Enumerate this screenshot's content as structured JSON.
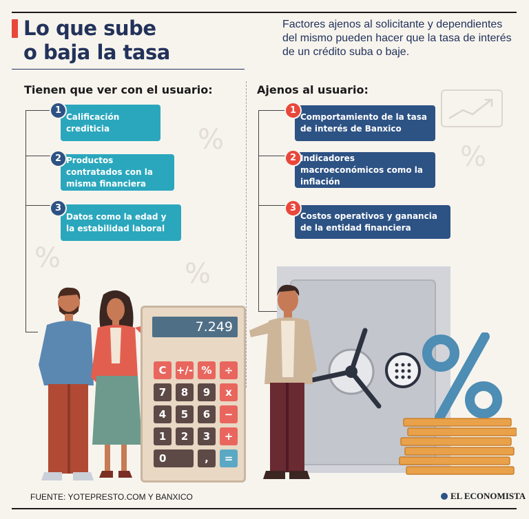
{
  "header": {
    "title_line1": "Lo que sube",
    "title_line2": "o baja la tasa",
    "intro": "Factores ajenos al solicitante y dependientes del mismo pueden hacer que la tasa de interés de un crédito suba o baje."
  },
  "left": {
    "heading": "Tienen que ver con el usuario:",
    "items": [
      {
        "num": "1",
        "text": "Calificación crediticia"
      },
      {
        "num": "2",
        "text": "Productos contratados con la misma financiera"
      },
      {
        "num": "3",
        "text": "Datos como la edad y la estabilidad laboral"
      }
    ]
  },
  "right": {
    "heading": "Ajenos al usuario:",
    "items": [
      {
        "num": "1",
        "text": "Comportamiento de la tasa de interés de Banxico"
      },
      {
        "num": "2",
        "text": "Indicadores macroeconómicos como la inflación"
      },
      {
        "num": "3",
        "text": "Costos operativos y ganancia de la entidad financiera"
      }
    ]
  },
  "calculator": {
    "display": "7.249",
    "keys": [
      "C",
      "+/-",
      "%",
      "÷",
      "7",
      "8",
      "9",
      "x",
      "4",
      "5",
      "6",
      "−",
      "1",
      "2",
      "3",
      "+",
      "0",
      ",",
      "="
    ]
  },
  "decor": {
    "percent_symbol": "%"
  },
  "footer": {
    "source": "FUENTE: YOTEPRESTO.COM Y BANXICO",
    "brand": "EL ECONOMISTA"
  },
  "colors": {
    "navy": "#22325a",
    "teal_box": "#2aa7bd",
    "navy_box": "#2d5284",
    "accent_red": "#e8473b",
    "background": "#f7f4ee"
  }
}
